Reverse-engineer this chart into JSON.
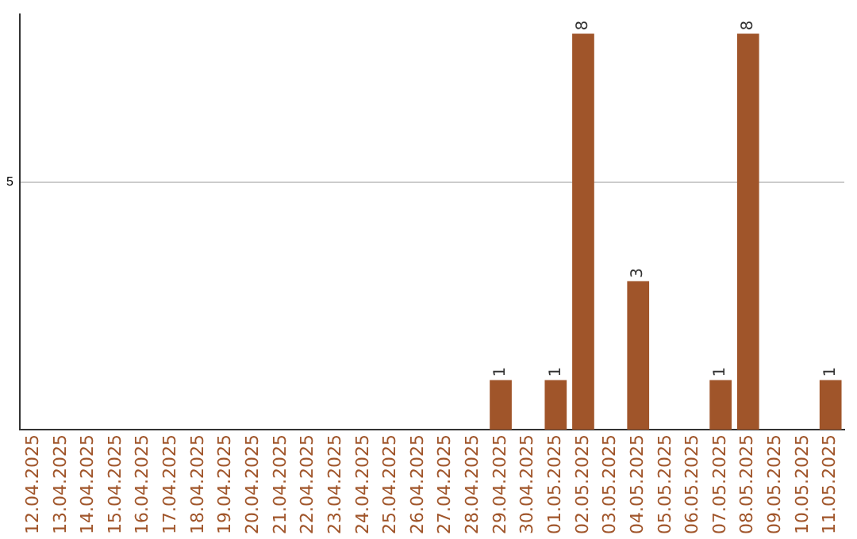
{
  "chart_data": {
    "type": "bar",
    "categories": [
      "12.04.2025",
      "13.04.2025",
      "14.04.2025",
      "15.04.2025",
      "16.04.2025",
      "17.04.2025",
      "18.04.2025",
      "19.04.2025",
      "20.04.2025",
      "21.04.2025",
      "22.04.2025",
      "23.04.2025",
      "24.04.2025",
      "25.04.2025",
      "26.04.2025",
      "27.04.2025",
      "28.04.2025",
      "29.04.2025",
      "30.04.2025",
      "01.05.2025",
      "02.05.2025",
      "03.05.2025",
      "04.05.2025",
      "05.05.2025",
      "06.05.2025",
      "07.05.2025",
      "08.05.2025",
      "09.05.2025",
      "10.05.2025",
      "11.05.2025"
    ],
    "values": [
      null,
      null,
      null,
      null,
      null,
      null,
      null,
      null,
      null,
      null,
      null,
      null,
      null,
      null,
      null,
      null,
      null,
      1,
      null,
      1,
      8,
      null,
      3,
      null,
      null,
      1,
      8,
      null,
      null,
      1
    ],
    "data_labels": true,
    "color": "#a0552a",
    "ylim": [
      0,
      8.4
    ],
    "yticks": [
      5
    ],
    "grid": "y",
    "legend": false
  }
}
